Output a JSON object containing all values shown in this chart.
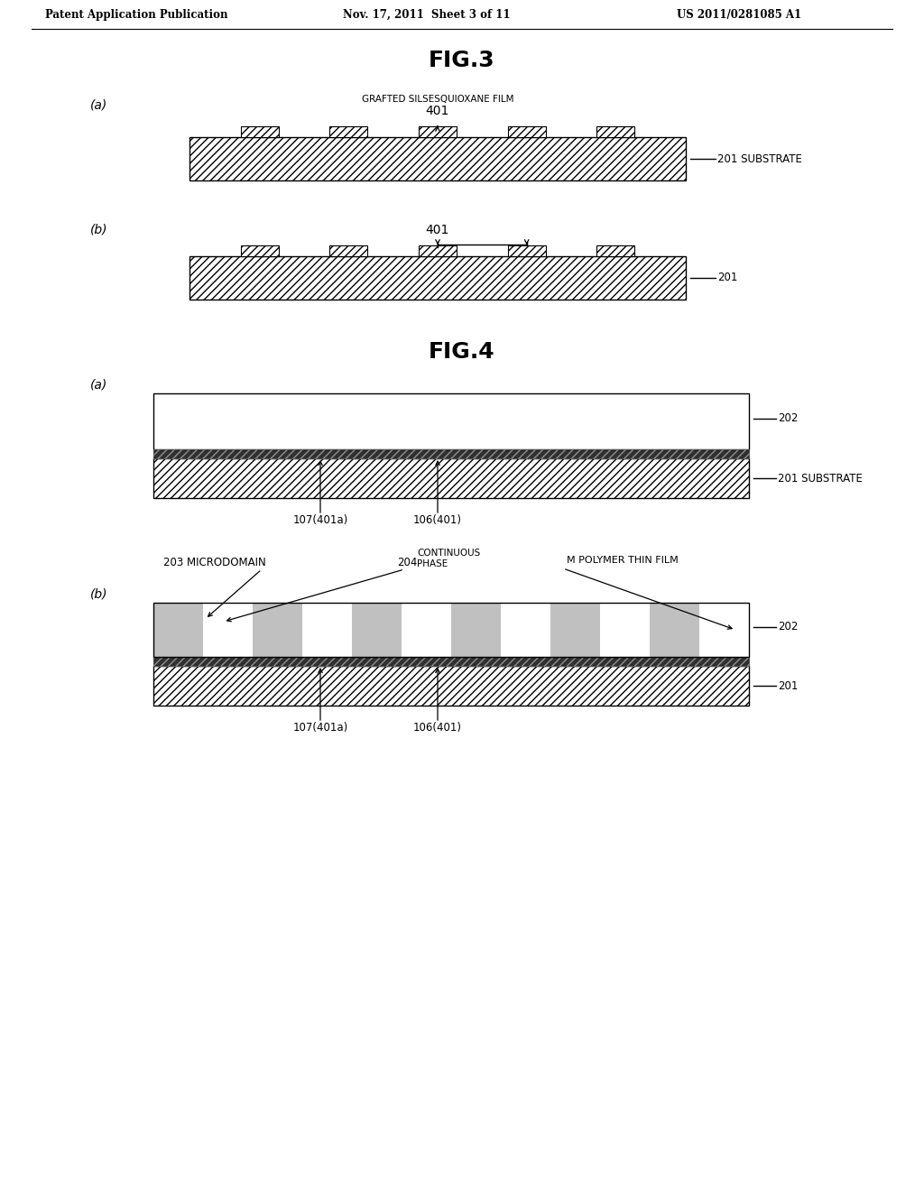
{
  "header_left": "Patent Application Publication",
  "header_mid": "Nov. 17, 2011  Sheet 3 of 11",
  "header_right": "US 2011/0281085 A1",
  "fig3_title": "FIG.3",
  "fig4_title": "FIG.4",
  "bg_color": "#ffffff",
  "fig3a_label": "(a)",
  "fig3b_label": "(b)",
  "fig4a_label": "(a)",
  "fig4b_label": "(b)",
  "label_grafted": "GRAFTED SILSESQUIOXANE FILM",
  "label_401": "401",
  "label_201_substrate": "201 SUBSTRATE",
  "label_201_b": "201",
  "label_202_a": "202",
  "label_201_sub_a": "201 SUBSTRATE",
  "label_107_a": "107(401a)",
  "label_106_a": "106(401)",
  "label_203": "203 MICRODOMAIN",
  "label_204_num": "204",
  "label_204_text": "CONTINUOUS\nPHASE",
  "label_M": "M POLYMER THIN FILM",
  "label_202_b": "202",
  "label_201_b2": "201",
  "label_107_b": "107(401a)",
  "label_106_b": "106(401)"
}
